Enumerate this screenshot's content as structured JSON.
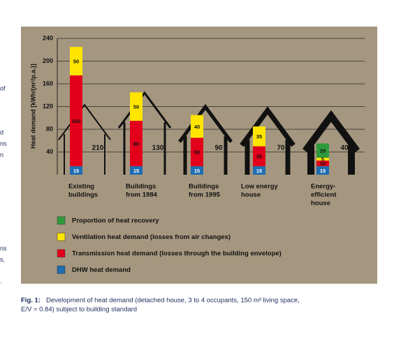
{
  "page_fragments": [
    "of",
    "d",
    "ns",
    "n",
    "ns",
    "s,",
    "."
  ],
  "chart_data": {
    "type": "stacked-bar",
    "y_label": "Heat demand [kWh/(m²/p.a.)]",
    "categories": [
      [
        "Existing",
        "buildings"
      ],
      [
        "Buildings",
        "from 1984"
      ],
      [
        "Buildings",
        "from 1995"
      ],
      [
        "Low energy",
        "house"
      ],
      [
        "Energy-",
        "efficient",
        "house"
      ]
    ],
    "house_labels": [
      "210",
      "130",
      "90",
      "70",
      "40"
    ],
    "series": [
      {
        "name": "DHW heat demand",
        "color": "#1f6db3",
        "values": [
          15,
          15,
          15,
          15,
          15
        ]
      },
      {
        "name": "Transmission heat demand (losses through the building envelope)",
        "color": "#e2001a",
        "values": [
          160,
          80,
          50,
          35,
          10
        ]
      },
      {
        "name": "Ventilation heat demand (losses from air changes)",
        "color": "#ffe500",
        "values": [
          50,
          50,
          40,
          35,
          5
        ]
      },
      {
        "name": "Proportion of heat recovery",
        "color": "#2e9a3c",
        "values": [
          null,
          null,
          null,
          null,
          25
        ]
      }
    ],
    "ylim": [
      0,
      240
    ],
    "yticks": [
      40,
      80,
      120,
      160,
      200,
      240
    ],
    "grid": true
  },
  "caption": {
    "label": "Fig. 1:",
    "text": "Development of heat demand (detached house, 3 to 4 occupants, 150 m² living space,",
    "text2": "E/V = 0.84) subject to building standard"
  }
}
